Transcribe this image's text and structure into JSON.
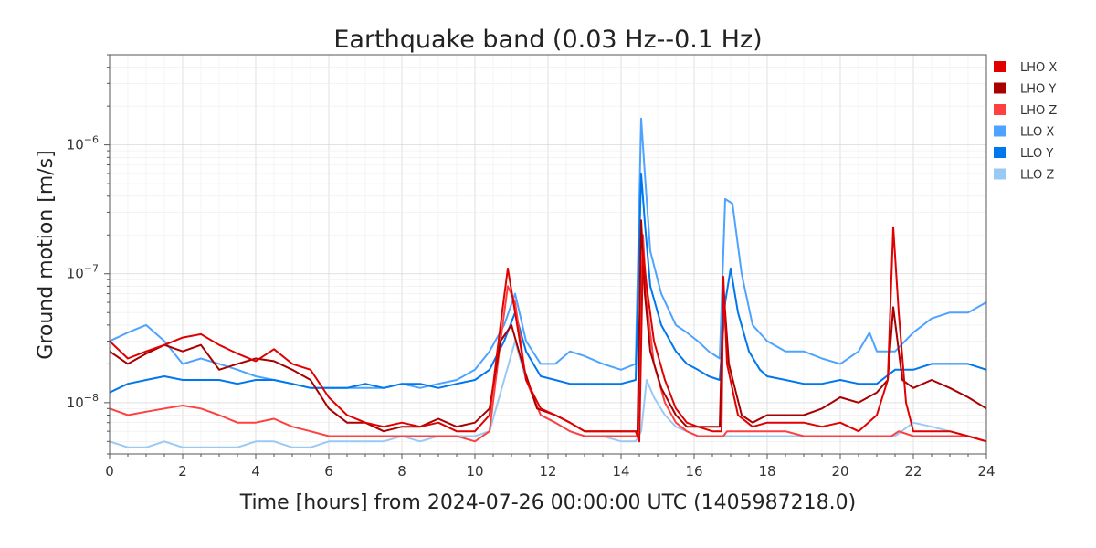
{
  "chart_data": {
    "type": "line",
    "title": "Earthquake band (0.03 Hz--0.1 Hz)",
    "xlabel": "Time [hours] from 2024-07-26 00:00:00 UTC (1405987218.0)",
    "ylabel": "Ground motion [m/s]",
    "xlim": [
      0,
      24
    ],
    "ylim": [
      4e-09,
      5e-06
    ],
    "yscale": "log",
    "grid": true,
    "legend_position": "right",
    "x_ticks": [
      0,
      2,
      4,
      6,
      8,
      10,
      12,
      14,
      16,
      18,
      20,
      22,
      24
    ],
    "y_ticks": [
      {
        "value": 1e-08,
        "base": "10",
        "exp": "−8"
      },
      {
        "value": 1e-07,
        "base": "10",
        "exp": "−7"
      },
      {
        "value": 1e-06,
        "base": "10",
        "exp": "−6"
      }
    ],
    "series": [
      {
        "name": "LHO X",
        "color": "#e00000",
        "x": [
          0,
          0.5,
          1,
          1.5,
          2,
          2.5,
          3,
          3.5,
          4,
          4.5,
          5,
          5.5,
          6,
          6.5,
          7,
          7.5,
          8,
          8.5,
          9,
          9.5,
          10,
          10.4,
          10.7,
          10.9,
          11.1,
          11.4,
          11.8,
          12.2,
          12.6,
          13,
          13.5,
          14,
          14.4,
          14.5,
          14.6,
          14.7,
          14.9,
          15.2,
          15.5,
          15.8,
          16.1,
          16.5,
          16.75,
          16.8,
          16.9,
          17.2,
          17.6,
          18,
          18.5,
          19,
          19.5,
          20,
          20.5,
          21,
          21.3,
          21.45,
          21.6,
          21.8,
          22,
          22.5,
          23,
          23.5,
          24
        ],
        "y": [
          3e-08,
          2.2e-08,
          2.5e-08,
          2.8e-08,
          3.2e-08,
          3.4e-08,
          2.8e-08,
          2.4e-08,
          2.1e-08,
          2.6e-08,
          2e-08,
          1.8e-08,
          1.1e-08,
          8e-09,
          7e-09,
          6.5e-09,
          7e-09,
          6.5e-09,
          7e-09,
          6e-09,
          6e-09,
          8e-09,
          4e-08,
          1.1e-07,
          5e-08,
          1.5e-08,
          9e-09,
          8e-09,
          7e-09,
          6e-09,
          6e-09,
          6e-09,
          6e-09,
          5e-09,
          1.5e-07,
          8e-08,
          3e-08,
          1.5e-08,
          9e-09,
          7e-09,
          6.5e-09,
          6e-09,
          6e-09,
          9.5e-08,
          2e-08,
          8e-09,
          6.5e-09,
          7e-09,
          7e-09,
          7e-09,
          6.5e-09,
          7e-09,
          6e-09,
          8e-09,
          1.5e-08,
          2.3e-07,
          5e-08,
          1e-08,
          6e-09,
          6e-09,
          6e-09,
          5.5e-09,
          5e-09
        ]
      },
      {
        "name": "LHO Y",
        "color": "#a80000",
        "x": [
          0,
          0.5,
          1,
          1.5,
          2,
          2.5,
          3,
          3.5,
          4,
          4.5,
          5,
          5.5,
          6,
          6.5,
          7,
          7.5,
          8,
          8.5,
          9,
          9.5,
          10,
          10.4,
          10.7,
          11,
          11.3,
          11.7,
          12.2,
          12.6,
          13,
          13.5,
          14,
          14.45,
          14.55,
          14.65,
          14.8,
          15.1,
          15.5,
          15.8,
          16.2,
          16.5,
          16.7,
          16.8,
          16.95,
          17.3,
          17.6,
          18,
          18.5,
          19,
          19.5,
          20,
          20.5,
          21,
          21.3,
          21.45,
          21.7,
          22,
          22.5,
          23,
          23.5,
          24
        ],
        "y": [
          2.5e-08,
          2e-08,
          2.4e-08,
          2.8e-08,
          2.5e-08,
          2.8e-08,
          1.8e-08,
          2e-08,
          2.2e-08,
          2.1e-08,
          1.8e-08,
          1.5e-08,
          9e-09,
          7e-09,
          7e-09,
          6e-09,
          6.5e-09,
          6.5e-09,
          7.5e-09,
          6.5e-09,
          7e-09,
          9e-09,
          3e-08,
          4e-08,
          2e-08,
          9e-09,
          8e-09,
          7e-09,
          6e-09,
          6e-09,
          6e-09,
          6e-09,
          2.6e-07,
          7e-08,
          2.5e-08,
          1.3e-08,
          8e-09,
          6.5e-09,
          6.5e-09,
          6.5e-09,
          6.5e-09,
          8e-08,
          2e-08,
          8e-09,
          7e-09,
          8e-09,
          8e-09,
          8e-09,
          9e-09,
          1.1e-08,
          1e-08,
          1.2e-08,
          1.5e-08,
          5.5e-08,
          1.5e-08,
          1.3e-08,
          1.5e-08,
          1.3e-08,
          1.1e-08,
          9e-09
        ]
      },
      {
        "name": "LHO Z",
        "color": "#ff4040",
        "x": [
          0,
          0.5,
          1,
          1.5,
          2,
          2.5,
          3,
          3.5,
          4,
          4.5,
          5,
          5.5,
          6,
          6.5,
          7,
          7.5,
          8,
          8.5,
          9,
          9.5,
          10,
          10.4,
          10.7,
          10.9,
          11.1,
          11.4,
          11.8,
          12.2,
          12.6,
          13,
          13.5,
          14,
          14.45,
          14.6,
          14.7,
          14.9,
          15.2,
          15.5,
          15.8,
          16.1,
          16.5,
          16.8,
          16.9,
          17.2,
          17.6,
          18,
          18.5,
          19,
          19.5,
          20,
          20.5,
          21,
          21.4,
          21.6,
          22,
          22.5,
          23,
          23.5,
          24
        ],
        "y": [
          9e-09,
          8e-09,
          8.5e-09,
          9e-09,
          9.5e-09,
          9e-09,
          8e-09,
          7e-09,
          7e-09,
          7.5e-09,
          6.5e-09,
          6e-09,
          5.5e-09,
          5.5e-09,
          5.5e-09,
          5.5e-09,
          5.5e-09,
          5.5e-09,
          5.5e-09,
          5.5e-09,
          5e-09,
          6e-09,
          3e-08,
          8e-08,
          6e-08,
          1.5e-08,
          8e-09,
          7e-09,
          6e-09,
          5.5e-09,
          5.5e-09,
          5.5e-09,
          5.5e-09,
          2e-07,
          6e-08,
          2e-08,
          1e-08,
          7e-09,
          6e-09,
          5.5e-09,
          5.5e-09,
          5.5e-09,
          6e-09,
          6e-09,
          6e-09,
          6e-09,
          6e-09,
          5.5e-09,
          5.5e-09,
          5.5e-09,
          5.5e-09,
          5.5e-09,
          5.5e-09,
          6e-09,
          5.5e-09,
          5.5e-09,
          5.5e-09,
          5.5e-09,
          5e-09
        ]
      },
      {
        "name": "LLO X",
        "color": "#4da3ff",
        "x": [
          0,
          0.5,
          1,
          1.5,
          2,
          2.5,
          3,
          3.5,
          4,
          4.5,
          5,
          5.5,
          6,
          6.5,
          7,
          7.5,
          8,
          8.5,
          9,
          9.5,
          10,
          10.4,
          10.8,
          11.1,
          11.4,
          11.8,
          12.2,
          12.6,
          13,
          13.5,
          14,
          14.4,
          14.55,
          14.65,
          14.8,
          15.1,
          15.5,
          15.8,
          16.1,
          16.4,
          16.7,
          16.85,
          17.05,
          17.3,
          17.6,
          18,
          18.5,
          19,
          19.5,
          20,
          20.5,
          20.8,
          21,
          21.5,
          22,
          22.5,
          23,
          23.5,
          24
        ],
        "y": [
          3e-08,
          3.5e-08,
          4e-08,
          3e-08,
          2e-08,
          2.2e-08,
          2e-08,
          1.8e-08,
          1.6e-08,
          1.5e-08,
          1.4e-08,
          1.3e-08,
          1.3e-08,
          1.3e-08,
          1.3e-08,
          1.3e-08,
          1.4e-08,
          1.3e-08,
          1.4e-08,
          1.5e-08,
          1.8e-08,
          2.5e-08,
          4e-08,
          7e-08,
          3e-08,
          2e-08,
          2e-08,
          2.5e-08,
          2.3e-08,
          2e-08,
          1.8e-08,
          2e-08,
          1.6e-06,
          6e-07,
          1.5e-07,
          7e-08,
          4e-08,
          3.5e-08,
          3e-08,
          2.5e-08,
          2.2e-08,
          3.8e-07,
          3.5e-07,
          1e-07,
          4e-08,
          3e-08,
          2.5e-08,
          2.5e-08,
          2.2e-08,
          2e-08,
          2.5e-08,
          3.5e-08,
          2.5e-08,
          2.5e-08,
          3.5e-08,
          4.5e-08,
          5e-08,
          5e-08,
          6e-08
        ]
      },
      {
        "name": "LLO Y",
        "color": "#0077ee",
        "x": [
          0,
          0.5,
          1,
          1.5,
          2,
          2.5,
          3,
          3.5,
          4,
          4.5,
          5,
          5.5,
          6,
          6.5,
          7,
          7.5,
          8,
          8.5,
          9,
          9.5,
          10,
          10.4,
          10.8,
          11.1,
          11.4,
          11.8,
          12.2,
          12.6,
          13,
          13.5,
          14,
          14.4,
          14.55,
          14.65,
          14.8,
          15.1,
          15.5,
          15.8,
          16.1,
          16.4,
          16.7,
          16.85,
          17,
          17.2,
          17.5,
          17.8,
          18,
          18.5,
          19,
          19.5,
          20,
          20.5,
          21,
          21.5,
          22,
          22.5,
          23,
          23.5,
          24
        ],
        "y": [
          1.2e-08,
          1.4e-08,
          1.5e-08,
          1.6e-08,
          1.5e-08,
          1.5e-08,
          1.5e-08,
          1.4e-08,
          1.5e-08,
          1.5e-08,
          1.4e-08,
          1.3e-08,
          1.3e-08,
          1.3e-08,
          1.4e-08,
          1.3e-08,
          1.4e-08,
          1.4e-08,
          1.3e-08,
          1.4e-08,
          1.5e-08,
          1.8e-08,
          3e-08,
          5e-08,
          2.5e-08,
          1.6e-08,
          1.5e-08,
          1.4e-08,
          1.4e-08,
          1.4e-08,
          1.4e-08,
          1.5e-08,
          6e-07,
          2.5e-07,
          8e-08,
          4e-08,
          2.5e-08,
          2e-08,
          1.8e-08,
          1.6e-08,
          1.5e-08,
          6e-08,
          1.1e-07,
          5e-08,
          2.5e-08,
          1.8e-08,
          1.6e-08,
          1.5e-08,
          1.4e-08,
          1.4e-08,
          1.5e-08,
          1.4e-08,
          1.4e-08,
          1.8e-08,
          1.8e-08,
          2e-08,
          2e-08,
          2e-08,
          1.8e-08
        ]
      },
      {
        "name": "LLO Z",
        "color": "#99c9f5",
        "x": [
          0,
          0.5,
          1,
          1.5,
          2,
          2.5,
          3,
          3.5,
          4,
          4.5,
          5,
          5.5,
          6,
          6.5,
          7,
          7.5,
          8,
          8.5,
          9,
          9.5,
          10,
          10.4,
          10.8,
          11.1,
          11.4,
          11.8,
          12.2,
          12.6,
          13,
          13.5,
          14,
          14.4,
          14.55,
          14.7,
          14.9,
          15.2,
          15.5,
          15.8,
          16.1,
          16.5,
          16.8,
          16.9,
          17.2,
          17.6,
          18,
          18.5,
          19,
          19.5,
          20,
          20.5,
          21,
          21.5,
          22,
          22.5,
          23,
          23.5,
          24
        ],
        "y": [
          5e-09,
          4.5e-09,
          4.5e-09,
          5e-09,
          4.5e-09,
          4.5e-09,
          4.5e-09,
          4.5e-09,
          5e-09,
          5e-09,
          4.5e-09,
          4.5e-09,
          5e-09,
          5e-09,
          5e-09,
          5e-09,
          5.5e-09,
          5e-09,
          5.5e-09,
          5.5e-09,
          5.5e-09,
          6e-09,
          1.5e-08,
          3e-08,
          1.5e-08,
          8e-09,
          7e-09,
          6e-09,
          5.5e-09,
          5.5e-09,
          5e-09,
          5e-09,
          6e-09,
          1.5e-08,
          1.1e-08,
          8e-09,
          6.5e-09,
          6e-09,
          5.5e-09,
          5.5e-09,
          5.5e-09,
          5.5e-09,
          5.5e-09,
          5.5e-09,
          5.5e-09,
          5.5e-09,
          5.5e-09,
          5.5e-09,
          5.5e-09,
          5.5e-09,
          5.5e-09,
          5.5e-09,
          7e-09,
          6.5e-09,
          6e-09,
          5.5e-09,
          5e-09
        ]
      }
    ]
  }
}
